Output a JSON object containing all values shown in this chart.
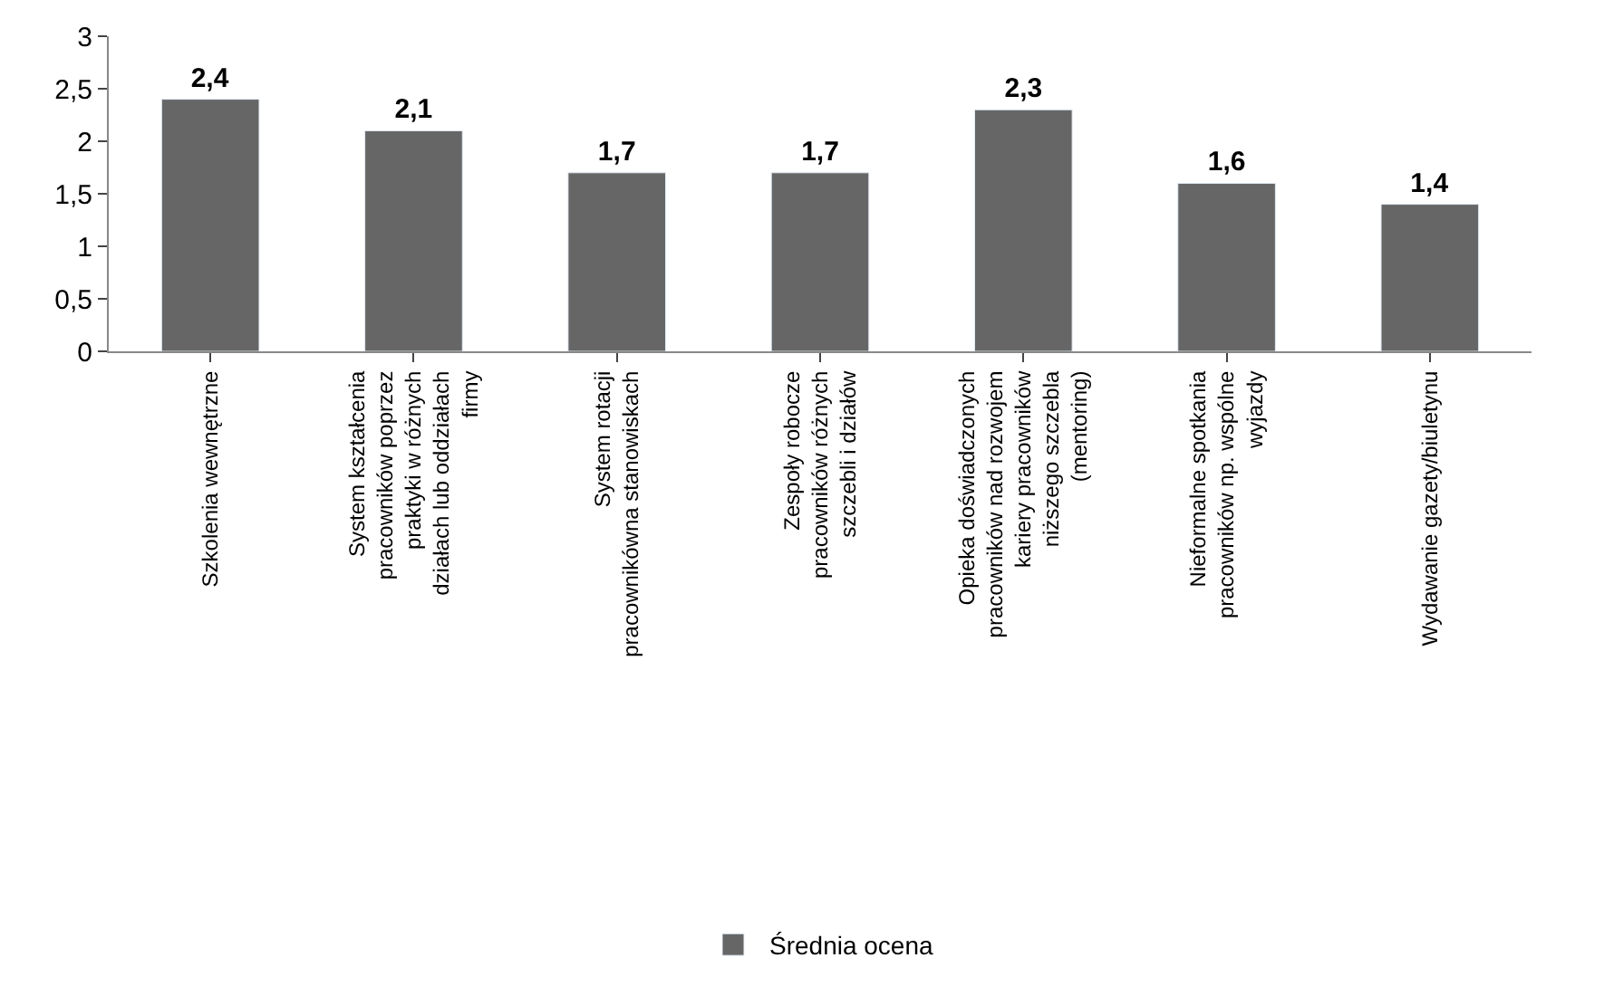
{
  "chart_data": {
    "type": "bar",
    "categories": [
      "Szkolenia wewnętrzne",
      "System kształcenia pracowników poprzez praktyki w różnych działach lub oddziałach firmy",
      "System rotacji pracownikówna stanowiskach",
      "Zespoły robocze pracowników różnych szczebli i działów",
      "Opieka doświadczonych pracowników nad rozwojem kariery pracowników niższego szczebla (mentoring)",
      "Nieformalne spotkania pracowników np. wspólne wyjazdy",
      "Wydawanie gazety/biuletynu"
    ],
    "series": [
      {
        "name": "Średnia ocena",
        "color": "#666666",
        "values": [
          2.4,
          2.1,
          1.7,
          1.7,
          2.3,
          1.6,
          1.4
        ],
        "value_labels": [
          "2,4",
          "2,1",
          "1,7",
          "1,7",
          "2,3",
          "1,6",
          "1,4"
        ]
      }
    ],
    "ylim": [
      0,
      3
    ],
    "yticks": [
      0,
      {
        "value": 0.5,
        "label": "0,5"
      },
      1,
      {
        "value": 1.5,
        "label": "1,5"
      },
      2,
      {
        "value": 2.5,
        "label": "2,5"
      },
      3
    ],
    "grid": false,
    "legend": "bottom"
  }
}
